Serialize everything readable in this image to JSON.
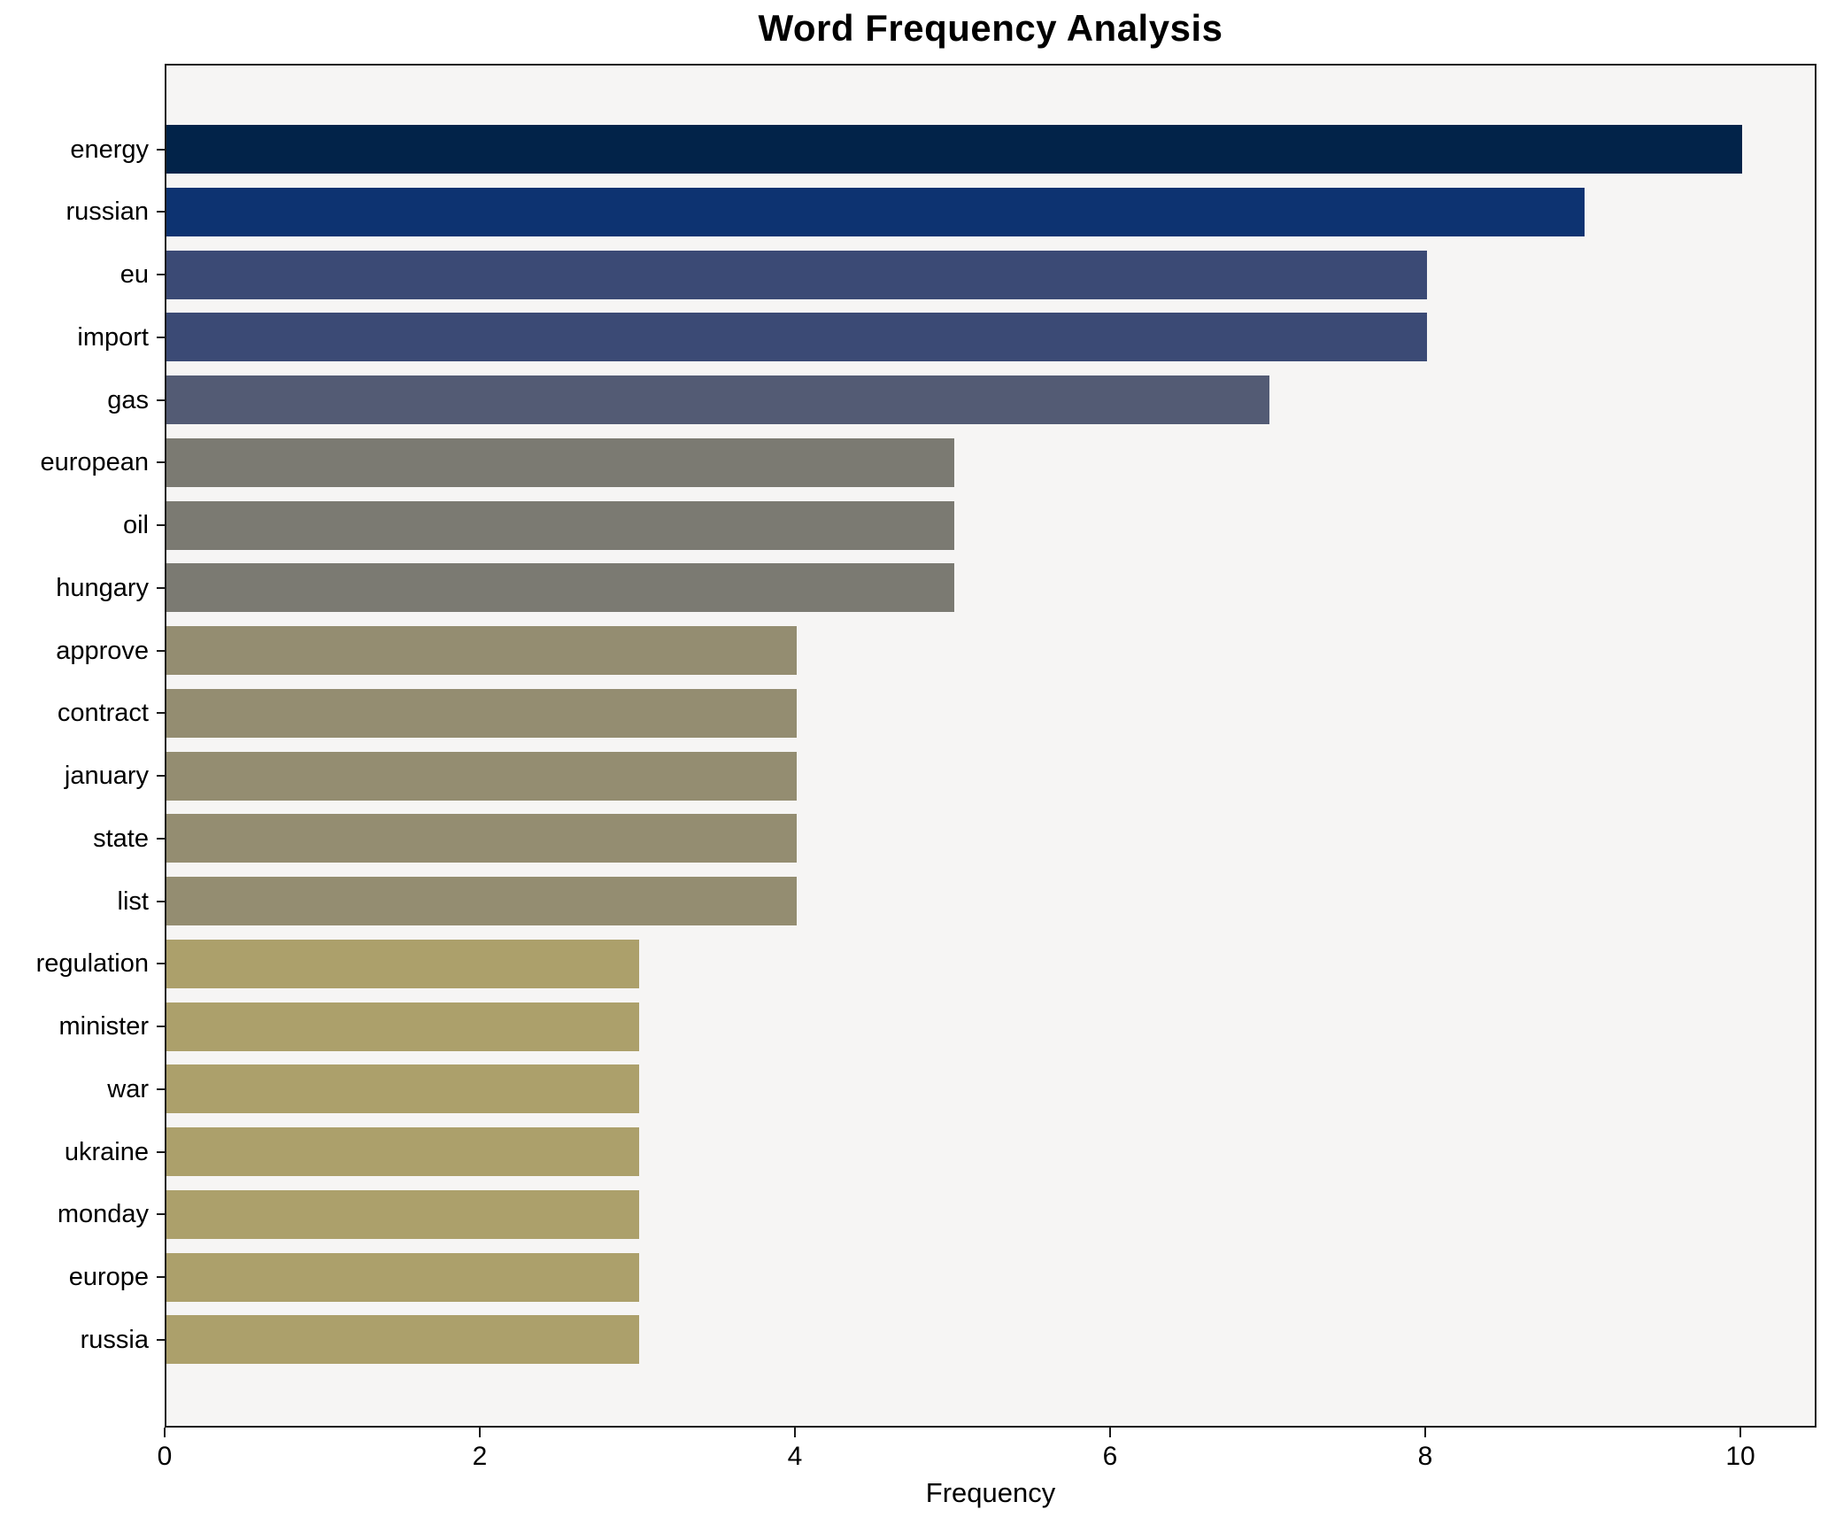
{
  "title": "Word Frequency Analysis",
  "chart_data": {
    "type": "bar",
    "orientation": "horizontal",
    "title": "Word Frequency Analysis",
    "xlabel": "Frequency",
    "ylabel": "",
    "categories": [
      "energy",
      "russian",
      "eu",
      "import",
      "gas",
      "european",
      "oil",
      "hungary",
      "approve",
      "contract",
      "january",
      "state",
      "list",
      "regulation",
      "minister",
      "war",
      "ukraine",
      "monday",
      "europe",
      "russia"
    ],
    "values": [
      10,
      9,
      8,
      8,
      7,
      5,
      5,
      5,
      4,
      4,
      4,
      4,
      4,
      3,
      3,
      3,
      3,
      3,
      3,
      3
    ],
    "bar_colors": [
      "#022349",
      "#0d3371",
      "#3b4a75",
      "#3b4a75",
      "#535b74",
      "#7b7a72",
      "#7b7a72",
      "#7b7a72",
      "#948d71",
      "#948d71",
      "#948d71",
      "#948d71",
      "#948d71",
      "#aca06b",
      "#aca06b",
      "#aca06b",
      "#aca06b",
      "#aca06b",
      "#aca06b",
      "#aca06b"
    ],
    "xlim": [
      0,
      10.48
    ],
    "xticks": [
      0,
      2,
      4,
      6,
      8,
      10
    ],
    "grid": false,
    "legend": "none",
    "plot_background": "#f6f5f4",
    "page_background": "#ffffff",
    "spine_color": "#1a1a1a",
    "text_color": "#000000"
  }
}
